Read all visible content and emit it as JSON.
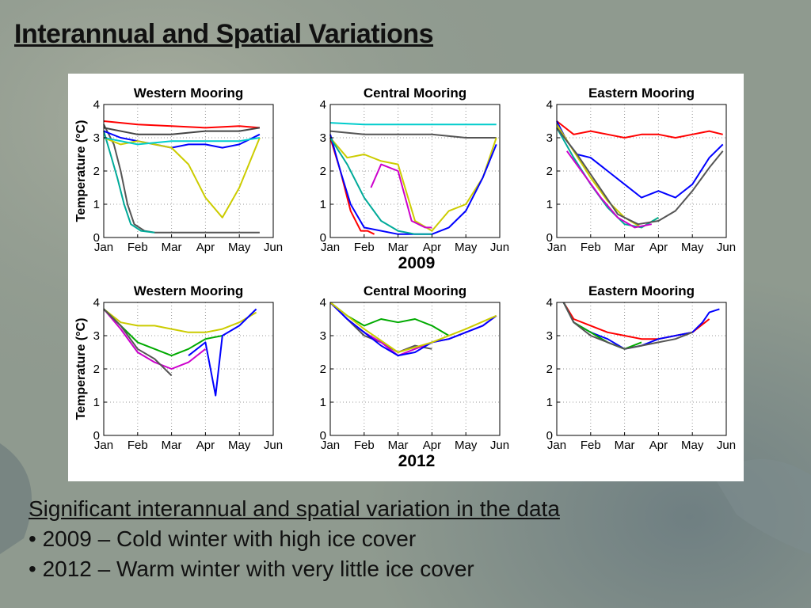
{
  "slide": {
    "title": "Interannual and Spatial Variations",
    "caption_heading": "Significant interannual and spatial variation in the data",
    "bullets": [
      "2009 – Cold winter with high ice cover",
      "2012 – Warm winter with very little ice cover"
    ],
    "bullet_glyph": "•"
  },
  "chart_data": [
    {
      "type": "line",
      "year_label": "2009",
      "title": "Western Mooring",
      "ylabel": "Temperature (°C)",
      "xlabel": "",
      "categories": [
        "Jan",
        "Feb",
        "Mar",
        "Apr",
        "May",
        "Jun"
      ],
      "yticks": [
        0,
        1,
        2,
        3,
        4
      ],
      "xlim": [
        0,
        5
      ],
      "ylim": [
        0,
        4
      ],
      "grid": true,
      "series": [
        {
          "color": "#ff0000",
          "x": [
            0,
            0.5,
            1,
            2,
            3,
            4,
            4.6
          ],
          "y": [
            3.5,
            3.45,
            3.4,
            3.35,
            3.3,
            3.35,
            3.3
          ]
        },
        {
          "color": "#555555",
          "x": [
            0,
            0.3,
            0.5,
            0.7,
            0.9,
            1.2,
            1.5,
            2,
            3,
            4,
            4.6
          ],
          "y": [
            3.4,
            2.8,
            2,
            1,
            0.4,
            0.2,
            0.15,
            0.15,
            0.15,
            0.15,
            0.15
          ]
        },
        {
          "color": "#00aa99",
          "x": [
            0,
            0.2,
            0.4,
            0.6,
            0.8,
            1.1,
            1.5
          ],
          "y": [
            3.2,
            2.5,
            1.8,
            1.0,
            0.4,
            0.2,
            0.15
          ]
        },
        {
          "color": "#0000ff",
          "x": [
            0,
            0.5,
            1,
            1.5,
            2,
            2.5,
            3,
            3.5,
            4,
            4.6
          ],
          "y": [
            3.2,
            3.0,
            2.9,
            2.8,
            2.7,
            2.8,
            2.8,
            2.7,
            2.8,
            3.1
          ]
        },
        {
          "color": "#cccc00",
          "x": [
            0,
            0.5,
            1,
            2,
            2.5,
            3,
            3.5,
            4,
            4.6
          ],
          "y": [
            3.0,
            2.8,
            2.9,
            2.7,
            2.2,
            1.2,
            0.6,
            1.5,
            3.0
          ]
        },
        {
          "color": "#00cccc",
          "x": [
            0,
            1,
            2,
            3,
            4,
            4.6
          ],
          "y": [
            3.0,
            2.8,
            2.9,
            2.9,
            2.9,
            3.0
          ]
        },
        {
          "color": "#444444",
          "x": [
            0,
            1,
            2,
            3,
            4,
            4.6
          ],
          "y": [
            3.3,
            3.1,
            3.1,
            3.2,
            3.2,
            3.3
          ]
        }
      ]
    },
    {
      "type": "line",
      "year_label": "2009",
      "title": "Central Mooring",
      "ylabel": "",
      "xlabel": "",
      "categories": [
        "Jan",
        "Feb",
        "Mar",
        "Apr",
        "May",
        "Jun"
      ],
      "yticks": [
        0,
        1,
        2,
        3,
        4
      ],
      "xlim": [
        0,
        5
      ],
      "ylim": [
        0,
        4
      ],
      "grid": true,
      "series": [
        {
          "color": "#00cccc",
          "x": [
            0,
            1,
            2,
            3,
            4,
            4.9
          ],
          "y": [
            3.45,
            3.4,
            3.4,
            3.4,
            3.4,
            3.4
          ]
        },
        {
          "color": "#555555",
          "x": [
            0,
            1,
            2,
            3,
            4,
            4.9
          ],
          "y": [
            3.2,
            3.1,
            3.1,
            3.1,
            3.0,
            3.0
          ]
        },
        {
          "color": "#cccc00",
          "x": [
            0,
            0.5,
            1,
            1.5,
            2,
            2.5,
            3,
            3.5,
            4,
            4.5,
            4.9
          ],
          "y": [
            3.0,
            2.4,
            2.5,
            2.3,
            2.2,
            0.5,
            0.2,
            0.8,
            1.0,
            1.8,
            3.0
          ]
        },
        {
          "color": "#ff0000",
          "x": [
            0,
            0.3,
            0.6,
            0.9,
            1.1,
            1.3
          ],
          "y": [
            3.0,
            2.0,
            0.8,
            0.2,
            0.2,
            0.1
          ]
        },
        {
          "color": "#cc00cc",
          "x": [
            1.2,
            1.5,
            2,
            2.4,
            2.8,
            3.0
          ],
          "y": [
            1.5,
            2.2,
            2.0,
            0.5,
            0.3,
            0.3
          ]
        },
        {
          "color": "#0000ff",
          "x": [
            0,
            0.3,
            0.6,
            1,
            2,
            3,
            3.5,
            4,
            4.5,
            4.9
          ],
          "y": [
            3.1,
            2.0,
            1.0,
            0.3,
            0.1,
            0.1,
            0.3,
            0.8,
            1.8,
            2.8
          ]
        },
        {
          "color": "#00aa99",
          "x": [
            0,
            0.5,
            1,
            1.5,
            2,
            2.5,
            3
          ],
          "y": [
            3.0,
            2.2,
            1.2,
            0.5,
            0.2,
            0.1,
            0.1
          ]
        }
      ]
    },
    {
      "type": "line",
      "year_label": "2009",
      "title": "Eastern Mooring",
      "ylabel": "",
      "xlabel": "",
      "categories": [
        "Jan",
        "Feb",
        "Mar",
        "Apr",
        "May",
        "Jun"
      ],
      "yticks": [
        0,
        1,
        2,
        3,
        4
      ],
      "xlim": [
        0,
        5
      ],
      "ylim": [
        0,
        4
      ],
      "grid": true,
      "series": [
        {
          "color": "#ff0000",
          "x": [
            0,
            0.5,
            1,
            1.5,
            2,
            2.5,
            3,
            3.5,
            4,
            4.5,
            4.9
          ],
          "y": [
            3.5,
            3.1,
            3.2,
            3.1,
            3.0,
            3.1,
            3.1,
            3.0,
            3.1,
            3.2,
            3.1
          ]
        },
        {
          "color": "#0000ff",
          "x": [
            0,
            0.3,
            0.6,
            1,
            1.5,
            2,
            2.5,
            3,
            3.5,
            4,
            4.5,
            4.9
          ],
          "y": [
            3.5,
            2.9,
            2.5,
            2.4,
            2.0,
            1.6,
            1.2,
            1.4,
            1.2,
            1.6,
            2.4,
            2.8
          ]
        },
        {
          "color": "#cccc00",
          "x": [
            0,
            0.5,
            1,
            1.5,
            2,
            2.5,
            3
          ],
          "y": [
            3.4,
            2.6,
            1.8,
            1.1,
            0.6,
            0.3,
            0.6
          ]
        },
        {
          "color": "#00aa99",
          "x": [
            0,
            0.5,
            1,
            1.5,
            2,
            2.5,
            3
          ],
          "y": [
            3.3,
            2.4,
            1.6,
            0.9,
            0.4,
            0.3,
            0.6
          ]
        },
        {
          "color": "#cc00cc",
          "x": [
            0.3,
            0.8,
            1.3,
            1.8,
            2.3,
            2.8
          ],
          "y": [
            2.6,
            1.9,
            1.2,
            0.6,
            0.3,
            0.4
          ]
        },
        {
          "color": "#555555",
          "x": [
            0,
            0.6,
            1.2,
            1.8,
            2.4,
            3,
            3.5,
            4,
            4.5,
            4.9
          ],
          "y": [
            3.3,
            2.5,
            1.6,
            0.7,
            0.4,
            0.5,
            0.8,
            1.4,
            2.1,
            2.6
          ]
        }
      ]
    },
    {
      "type": "line",
      "year_label": "2012",
      "title": "Western Mooring",
      "ylabel": "Temperature (°C)",
      "xlabel": "",
      "categories": [
        "Jan",
        "Feb",
        "Mar",
        "Apr",
        "May",
        "Jun"
      ],
      "yticks": [
        0,
        1,
        2,
        3,
        4
      ],
      "xlim": [
        0,
        5
      ],
      "ylim": [
        0,
        4
      ],
      "grid": true,
      "series": [
        {
          "color": "#cccc00",
          "x": [
            0,
            0.5,
            1,
            1.5,
            2,
            2.5,
            3,
            3.5,
            4,
            4.5
          ],
          "y": [
            3.8,
            3.4,
            3.3,
            3.3,
            3.2,
            3.1,
            3.1,
            3.2,
            3.4,
            3.7
          ]
        },
        {
          "color": "#cc00cc",
          "x": [
            0,
            0.5,
            1,
            1.5,
            2,
            2.5,
            3
          ],
          "y": [
            3.8,
            3.2,
            2.5,
            2.2,
            2.0,
            2.2,
            2.6
          ]
        },
        {
          "color": "#00aa00",
          "x": [
            0,
            0.5,
            1,
            1.5,
            2,
            2.5,
            3,
            3.5
          ],
          "y": [
            3.8,
            3.3,
            2.8,
            2.6,
            2.4,
            2.6,
            2.9,
            3.0
          ]
        },
        {
          "color": "#555555",
          "x": [
            0,
            0.5,
            1,
            1.5,
            2
          ],
          "y": [
            3.8,
            3.3,
            2.6,
            2.3,
            1.8
          ]
        },
        {
          "color": "#0000ff",
          "x": [
            2.5,
            3,
            3.3,
            3.5,
            4,
            4.5
          ],
          "y": [
            2.4,
            2.8,
            1.2,
            3.0,
            3.3,
            3.8
          ]
        }
      ]
    },
    {
      "type": "line",
      "year_label": "2012",
      "title": "Central Mooring",
      "ylabel": "",
      "xlabel": "",
      "categories": [
        "Jan",
        "Feb",
        "Mar",
        "Apr",
        "May",
        "Jun"
      ],
      "yticks": [
        0,
        1,
        2,
        3,
        4
      ],
      "xlim": [
        0,
        5
      ],
      "ylim": [
        0,
        4
      ],
      "grid": true,
      "series": [
        {
          "color": "#00aa00",
          "x": [
            0,
            0.5,
            1,
            1.5,
            2,
            2.5,
            3,
            3.5
          ],
          "y": [
            4.0,
            3.6,
            3.3,
            3.5,
            3.4,
            3.5,
            3.3,
            3.0
          ]
        },
        {
          "color": "#555555",
          "x": [
            0,
            0.5,
            1,
            1.5,
            2,
            2.5,
            3
          ],
          "y": [
            4.0,
            3.5,
            3.0,
            2.8,
            2.5,
            2.7,
            2.6
          ]
        },
        {
          "color": "#cc00cc",
          "x": [
            0,
            0.5,
            1,
            1.5,
            2,
            2.5,
            3,
            3.5,
            4,
            4.5,
            4.9
          ],
          "y": [
            4.0,
            3.5,
            3.1,
            2.8,
            2.4,
            2.6,
            2.8,
            2.9,
            3.1,
            3.3,
            3.6
          ]
        },
        {
          "color": "#0000ff",
          "x": [
            0,
            0.5,
            1,
            1.5,
            2,
            2.5,
            3,
            3.5,
            4,
            4.5,
            4.9
          ],
          "y": [
            4.0,
            3.5,
            3.1,
            2.7,
            2.4,
            2.5,
            2.8,
            2.9,
            3.1,
            3.3,
            3.6
          ]
        },
        {
          "color": "#cccc00",
          "x": [
            0,
            1,
            2,
            3,
            4,
            4.9
          ],
          "y": [
            4.0,
            3.2,
            2.5,
            2.8,
            3.2,
            3.6
          ]
        }
      ]
    },
    {
      "type": "line",
      "year_label": "2012",
      "title": "Eastern Mooring",
      "ylabel": "",
      "xlabel": "",
      "categories": [
        "Jan",
        "Feb",
        "Mar",
        "Apr",
        "May",
        "Jun"
      ],
      "yticks": [
        0,
        1,
        2,
        3,
        4
      ],
      "xlim": [
        0,
        5
      ],
      "ylim": [
        0,
        4
      ],
      "grid": true,
      "series": [
        {
          "color": "#ff0000",
          "x": [
            0.2,
            0.5,
            1,
            1.5,
            2,
            2.5,
            3,
            3.5,
            4,
            4.5
          ],
          "y": [
            4.0,
            3.5,
            3.3,
            3.1,
            3.0,
            2.9,
            2.9,
            3.0,
            3.1,
            3.5
          ]
        },
        {
          "color": "#0000ff",
          "x": [
            0.2,
            0.5,
            1,
            1.5,
            2,
            2.5,
            3,
            3.5,
            4,
            4.3,
            4.5,
            4.8
          ],
          "y": [
            4.0,
            3.4,
            3.1,
            2.9,
            2.6,
            2.7,
            2.9,
            3.0,
            3.1,
            3.4,
            3.7,
            3.8
          ]
        },
        {
          "color": "#00aa00",
          "x": [
            0.2,
            0.5,
            1,
            1.5,
            2,
            2.5
          ],
          "y": [
            4.0,
            3.4,
            3.1,
            2.8,
            2.6,
            2.8
          ]
        },
        {
          "color": "#555555",
          "x": [
            0.2,
            0.5,
            1,
            1.5,
            2,
            2.5,
            3,
            3.5,
            4
          ],
          "y": [
            4.0,
            3.4,
            3.0,
            2.8,
            2.6,
            2.7,
            2.8,
            2.9,
            3.1
          ]
        }
      ]
    }
  ]
}
